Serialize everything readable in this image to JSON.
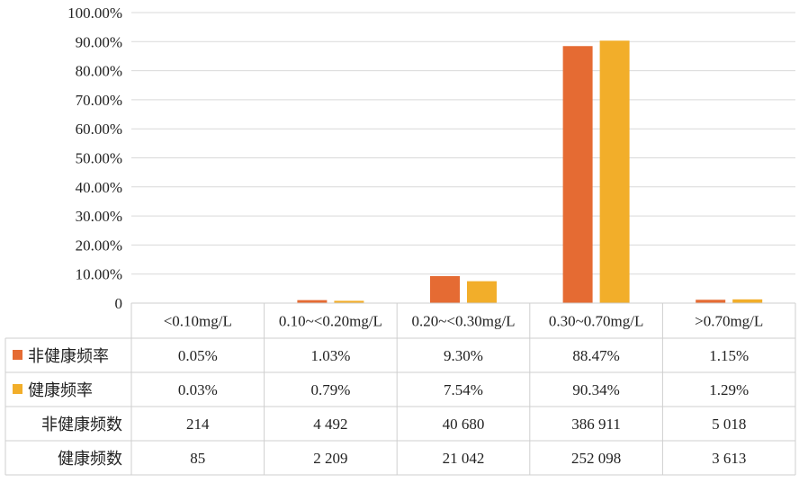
{
  "chart_data": {
    "type": "bar",
    "ylim": [
      0,
      100
    ],
    "yticks": [
      "0",
      "10.00%",
      "20.00%",
      "30.00%",
      "40.00%",
      "50.00%",
      "60.00%",
      "70.00%",
      "80.00%",
      "90.00%",
      "100.00%"
    ],
    "categories": [
      "<0.10mg/L",
      "0.10~<0.20mg/L",
      "0.20~<0.30mg/L",
      "0.30~0.70mg/L",
      ">0.70mg/L"
    ],
    "series": [
      {
        "name": "非健康频率",
        "color": "#E56B33",
        "values": [
          0.05,
          1.03,
          9.3,
          88.47,
          1.15
        ]
      },
      {
        "name": "健康频率",
        "color": "#F2AE2A",
        "values": [
          0.03,
          0.79,
          7.54,
          90.34,
          1.29
        ]
      }
    ],
    "table": {
      "rows": [
        {
          "label": "非健康频率",
          "legend_color": "#E56B33",
          "cells": [
            "0.05%",
            "1.03%",
            "9.30%",
            "88.47%",
            "1.15%"
          ]
        },
        {
          "label": "健康频率",
          "legend_color": "#F2AE2A",
          "cells": [
            "0.03%",
            "0.79%",
            "7.54%",
            "90.34%",
            "1.29%"
          ]
        },
        {
          "label": "非健康频数",
          "legend_color": "",
          "cells": [
            "214",
            "4 492",
            "40 680",
            "386 911",
            "5 018"
          ]
        },
        {
          "label": "健康频数",
          "legend_color": "",
          "cells": [
            "85",
            "2 209",
            "21 042",
            "252 098",
            "3 613"
          ]
        }
      ]
    }
  }
}
